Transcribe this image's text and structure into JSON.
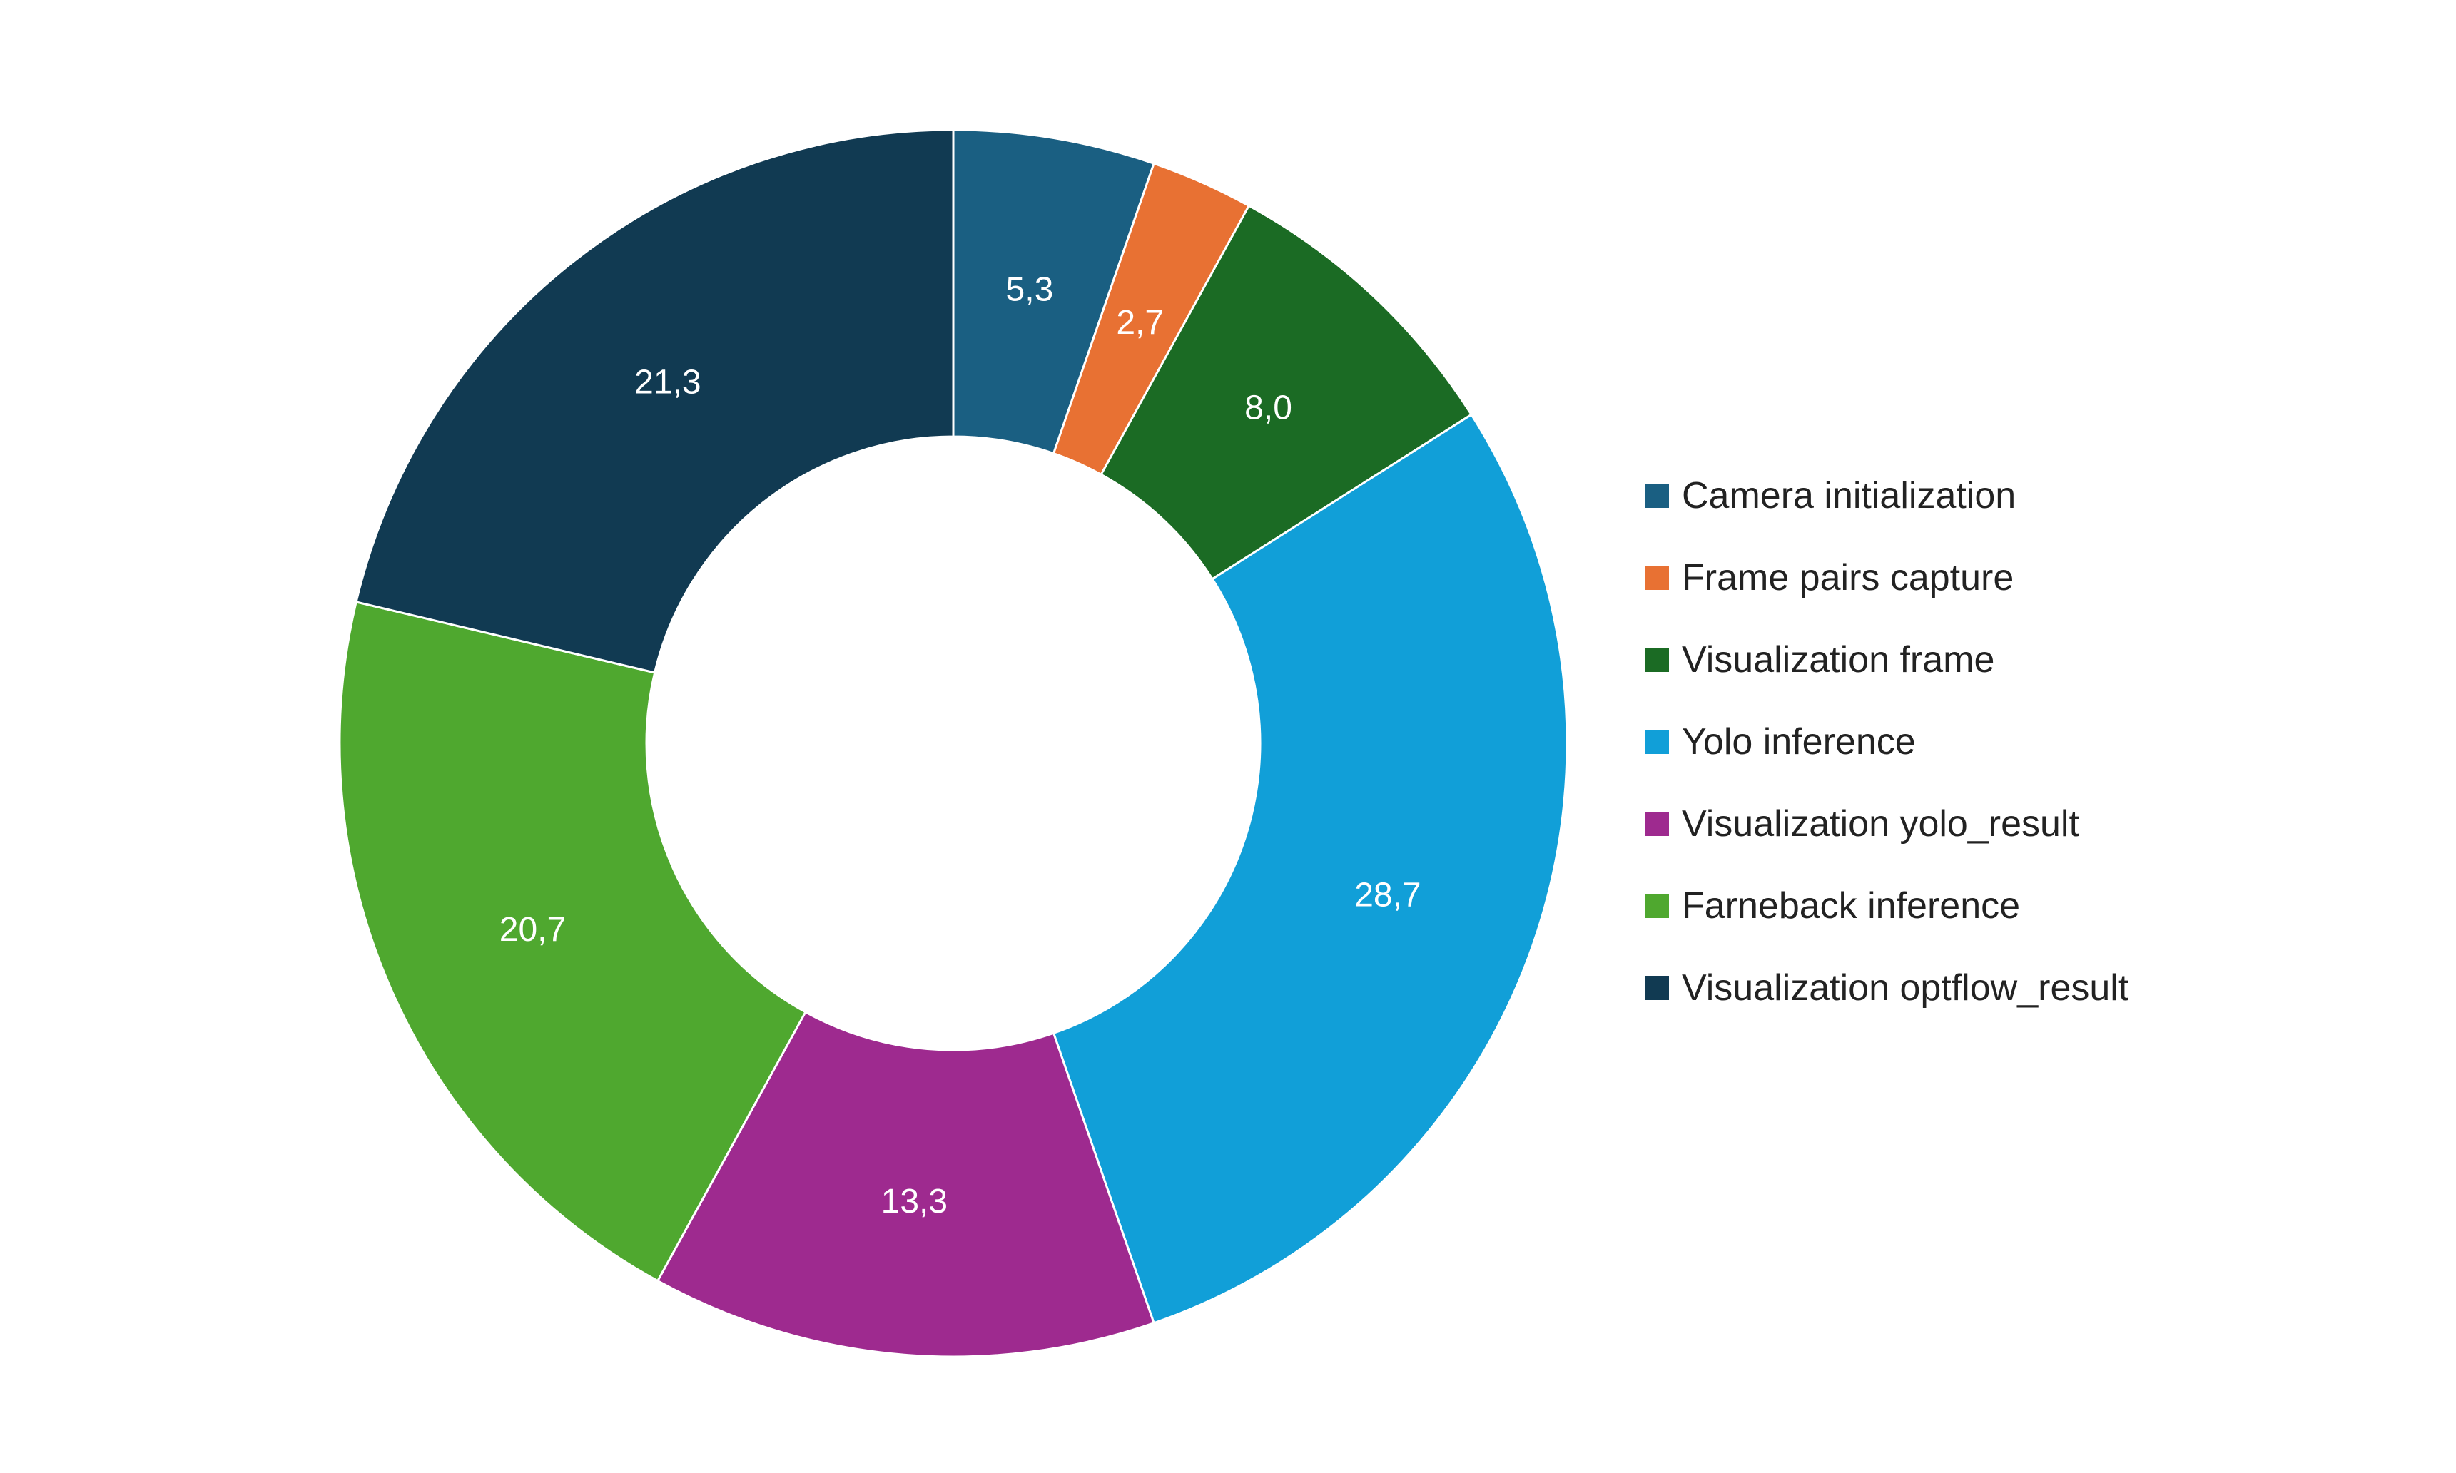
{
  "chart_data": {
    "type": "pie",
    "variant": "donut",
    "title": "",
    "categories": [
      "Camera initialization",
      "Frame pairs capture",
      "Visualization frame",
      "Yolo inference",
      "Visualization yolo_result",
      "Farneback inference",
      "Visualization optflow_result"
    ],
    "values": [
      5.3,
      2.7,
      8.0,
      28.7,
      13.3,
      20.7,
      21.3
    ],
    "labels": [
      "5,3",
      "2,7",
      "8,0",
      "28,7",
      "13,3",
      "20,7",
      "21,3"
    ],
    "colors": [
      "#1a5f82",
      "#e87133",
      "#1b6b24",
      "#119fd8",
      "#9e2a8f",
      "#4fa82f",
      "#113a52"
    ],
    "legend_position": "right"
  }
}
